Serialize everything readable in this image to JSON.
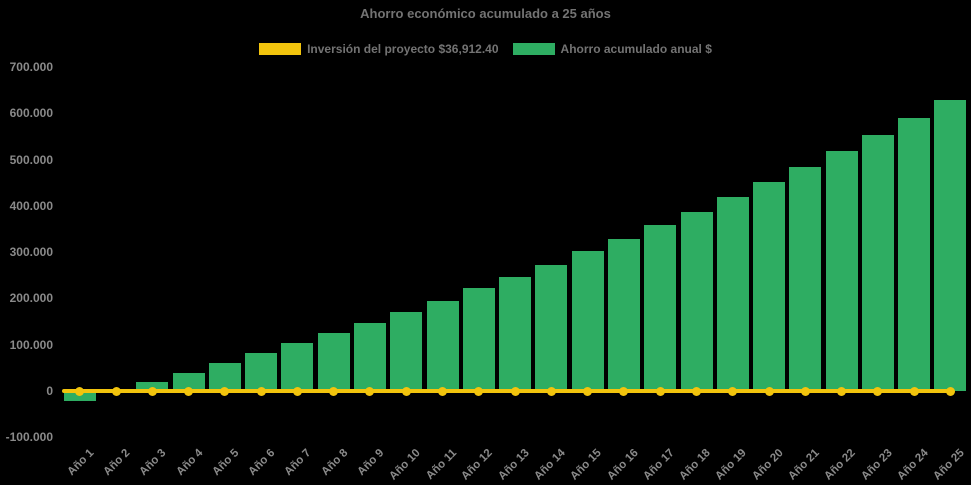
{
  "title": "Ahorro económico acumulado a 25 años",
  "colors": {
    "background": "#000000",
    "bar_green": "#2ead62",
    "line_yellow": "#f2c40d",
    "title_text": "#737373",
    "tick_text": "#8a8a8a"
  },
  "legend": {
    "items": [
      {
        "label": "Inversión del proyecto $36,912.40",
        "color": "#f2c40d",
        "type": "line"
      },
      {
        "label": "Ahorro acumulado anual $",
        "color": "#2ead62",
        "type": "bar"
      }
    ],
    "position": "top"
  },
  "chart_data": {
    "type": "bar",
    "title": "Ahorro económico acumulado a 25 años",
    "xlabel": "",
    "ylabel": "",
    "categories": [
      "Año 1",
      "Año 2",
      "Año 3",
      "Año 4",
      "Año 5",
      "Año 6",
      "Año 7",
      "Año 8",
      "Año 9",
      "Año 10",
      "Año 11",
      "Año 12",
      "Año 13",
      "Año 14",
      "Año 15",
      "Año 16",
      "Año 17",
      "Año 18",
      "Año 19",
      "Año 20",
      "Año 21",
      "Año 22",
      "Año 23",
      "Año 24",
      "Año 25"
    ],
    "series": [
      {
        "name": "Inversión del proyecto $36,912.40",
        "type": "line",
        "color": "#f2c40d",
        "values": [
          0,
          0,
          0,
          0,
          0,
          0,
          0,
          0,
          0,
          0,
          0,
          0,
          0,
          0,
          0,
          0,
          0,
          0,
          0,
          0,
          0,
          0,
          0,
          0,
          0
        ]
      },
      {
        "name": "Ahorro acumulado anual $",
        "type": "bar",
        "color": "#2ead62",
        "values": [
          -21000,
          -3500,
          18500,
          39000,
          60500,
          82500,
          104500,
          125000,
          147000,
          170500,
          195500,
          223000,
          246500,
          272000,
          302500,
          328000,
          358500,
          387500,
          419000,
          451500,
          483500,
          518000,
          554000,
          589500,
          628000
        ]
      }
    ],
    "ylim": [
      -100000,
      700000
    ],
    "ytick_step": 100000,
    "ytick_labels": [
      "700.000",
      "600.000",
      "500.000",
      "400.000",
      "300.000",
      "200.000",
      "100.000",
      "0",
      "-100.000"
    ],
    "grid": false,
    "legend_position": "top"
  }
}
